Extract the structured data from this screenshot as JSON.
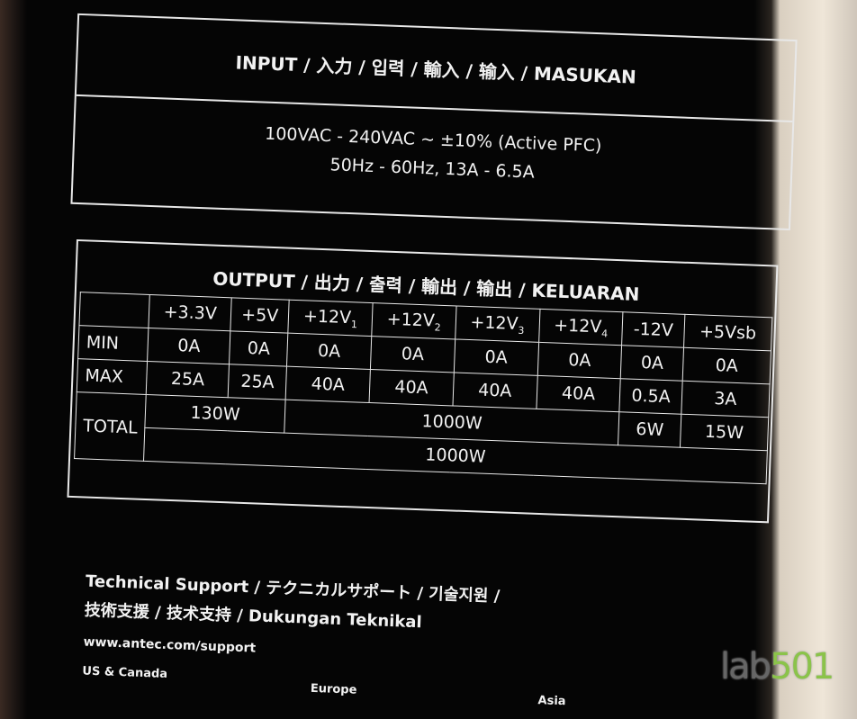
{
  "input": {
    "title": "INPUT / 入力 / 입력 / 輸入 / 输入 / MASUKAN",
    "line1": "100VAC - 240VAC ~ ±10% (Active PFC)",
    "line2": "50Hz - 60Hz, 13A - 6.5A"
  },
  "output": {
    "title": "OUTPUT / 出力 / 출력 / 輸出 / 输出 / KELUARAN",
    "rails": [
      "+3.3V",
      "+5V",
      "+12V",
      "+12V",
      "+12V",
      "+12V",
      "-12V",
      "+5Vsb"
    ],
    "rail_subs": [
      "",
      "",
      "1",
      "2",
      "3",
      "4",
      "",
      ""
    ],
    "min_label": "MIN",
    "min": [
      "0A",
      "0A",
      "0A",
      "0A",
      "0A",
      "0A",
      "0A",
      "0A"
    ],
    "max_label": "MAX",
    "max": [
      "25A",
      "25A",
      "40A",
      "40A",
      "40A",
      "40A",
      "0.5A",
      "3A"
    ],
    "total_label": "TOTAL",
    "total_33_5": "130W",
    "total_12": "1000W",
    "total_m12": "6W",
    "total_5vsb": "15W",
    "total_all": "1000W"
  },
  "support": {
    "line1": "Technical Support / テクニカルサポート / 기술지원 /",
    "line2": "技術支援 / 技术支持 / Dukungan Teknikal",
    "url": "www.antec.com/support",
    "regions": [
      "US & Canada",
      "Europe",
      "Asia"
    ]
  },
  "watermark": {
    "part1": "lab",
    "part2": "501"
  }
}
